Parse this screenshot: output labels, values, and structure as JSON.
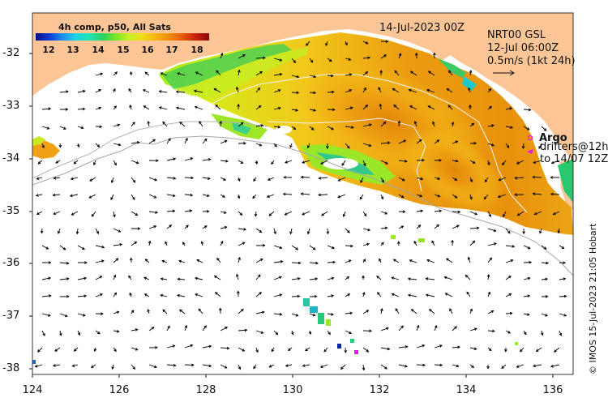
{
  "map_title": "14-Jul-2023 00Z",
  "colorbar": {
    "title": "4h comp, p50, All Sats",
    "ticks": [
      "12",
      "13",
      "14",
      "15",
      "16",
      "17",
      "18"
    ],
    "range": [
      11.5,
      18.5
    ]
  },
  "product_info": {
    "line1": "NRT00 GSL",
    "line2": "12-Jul 06:00Z",
    "line3": "0.5m/s (1kt 24h)"
  },
  "legend": {
    "argo_label": "Argo",
    "drifters_line1": "drifters@12h",
    "drifters_line2": "to 14/07 12Z"
  },
  "axes": {
    "x_ticks": [
      "124",
      "126",
      "128",
      "130",
      "132",
      "134",
      "136"
    ],
    "y_ticks": [
      "-32",
      "-33",
      "-34",
      "-35",
      "-36",
      "-37",
      "-38"
    ],
    "lon_range": [
      124,
      136.5
    ],
    "lat_range": [
      -38.1,
      -31.3
    ]
  },
  "credit": "© IMOS 15-Jul-2023 21:05 Hobart",
  "colors": {
    "land": "#fbc596",
    "water": "#ffffff",
    "argo_marker": "#e619e6",
    "warm_core": "#e8920a",
    "frontal_green": "#8ee61e"
  }
}
